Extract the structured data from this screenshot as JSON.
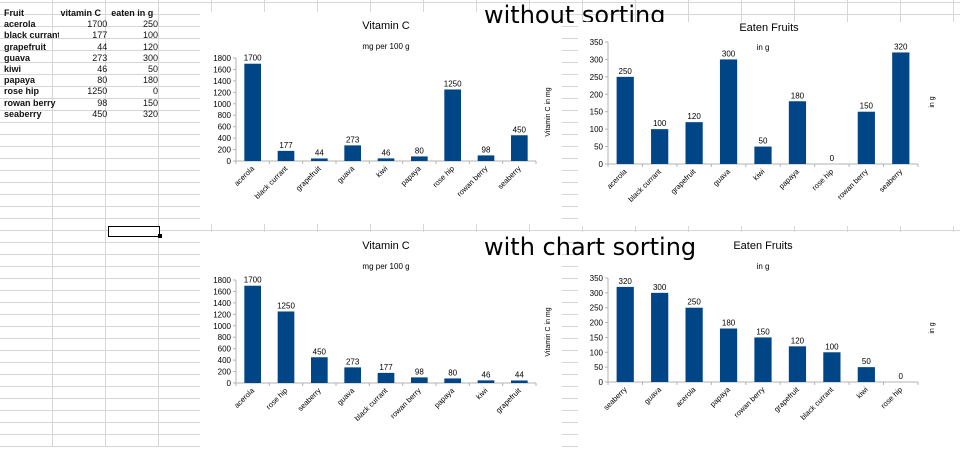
{
  "spreadsheet": {
    "headers": [
      "Fruit",
      "vitamin C",
      "eaten in g"
    ],
    "rows": [
      [
        "acerola",
        "1700",
        "250"
      ],
      [
        "black currant",
        "177",
        "100"
      ],
      [
        "grapefruit",
        "44",
        "120"
      ],
      [
        "guava",
        "273",
        "300"
      ],
      [
        "kiwi",
        "46",
        "50"
      ],
      [
        "papaya",
        "80",
        "180"
      ],
      [
        "rose hip",
        "1250",
        "0"
      ],
      [
        "rowan berry",
        "98",
        "150"
      ],
      [
        "seaberry",
        "450",
        "320"
      ]
    ]
  },
  "labels": {
    "without_sorting": "without sorting",
    "with_chart_sorting": "with chart sorting"
  },
  "chart_data": [
    {
      "id": "vitc-unsorted",
      "type": "bar",
      "title": "Vitamin C",
      "subtitle": "mg per 100 g",
      "xlabel": "",
      "ylabel": "Vitamin C in mg",
      "categories": [
        "acerola",
        "black currant",
        "grapefruit",
        "guava",
        "kiwi",
        "papaya",
        "rose hip",
        "rowan berry",
        "seaberry"
      ],
      "values": [
        1700,
        177,
        44,
        273,
        46,
        80,
        1250,
        98,
        450
      ],
      "ylim": [
        0,
        1800
      ],
      "yticks": [
        0,
        200,
        400,
        600,
        800,
        1000,
        1200,
        1400,
        1600,
        1800
      ],
      "color": "#004586",
      "grid": false
    },
    {
      "id": "eaten-unsorted",
      "type": "bar",
      "title": "Eaten Fruits",
      "subtitle": "in g",
      "xlabel": "",
      "ylabel": "in g",
      "categories": [
        "acerola",
        "black currant",
        "grapefruit",
        "guava",
        "kiwi",
        "papaya",
        "rose hip",
        "rowan berry",
        "seaberry"
      ],
      "values": [
        250,
        100,
        120,
        300,
        50,
        180,
        0,
        150,
        320
      ],
      "ylim": [
        0,
        350
      ],
      "yticks": [
        0,
        50,
        100,
        150,
        200,
        250,
        300,
        350
      ],
      "color": "#004586",
      "grid": false
    },
    {
      "id": "vitc-sorted",
      "type": "bar",
      "title": "Vitamin C",
      "subtitle": "mg per 100 g",
      "xlabel": "",
      "ylabel": "Vitamin C in mg",
      "categories": [
        "acerola",
        "rose hip",
        "seaberry",
        "guava",
        "black currant",
        "rowan berry",
        "papaya",
        "kiwi",
        "grapefruit"
      ],
      "values": [
        1700,
        1250,
        450,
        273,
        177,
        98,
        80,
        46,
        44
      ],
      "ylim": [
        0,
        1800
      ],
      "yticks": [
        0,
        200,
        400,
        600,
        800,
        1000,
        1200,
        1400,
        1600,
        1800
      ],
      "color": "#004586",
      "grid": false
    },
    {
      "id": "eaten-sorted",
      "type": "bar",
      "title": "Eaten Fruits",
      "subtitle": "in g",
      "xlabel": "",
      "ylabel": "in g",
      "categories": [
        "seaberry",
        "guava",
        "acerola",
        "papaya",
        "rowan berry",
        "grapefruit",
        "black currant",
        "kiwi",
        "rose hip"
      ],
      "values": [
        320,
        300,
        250,
        180,
        150,
        120,
        100,
        50,
        0
      ],
      "ylim": [
        0,
        350
      ],
      "yticks": [
        0,
        50,
        100,
        150,
        200,
        250,
        300,
        350
      ],
      "color": "#004586",
      "grid": false
    }
  ]
}
